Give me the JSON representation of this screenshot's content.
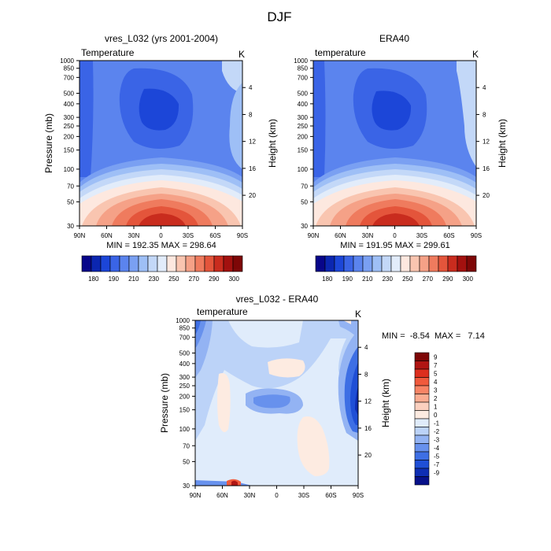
{
  "figure_title": "DJF",
  "chart_data": [
    {
      "type": "contour",
      "id": "model",
      "title": "vres_L032 (yrs 2001-2004)",
      "variable": "Temperature",
      "units": "K",
      "xlabel": "",
      "ylabel": "Pressure (mb)",
      "ylabel_right": "Height (km)",
      "x_ticks": [
        "90N",
        "60N",
        "30N",
        "0",
        "30S",
        "60S",
        "90S"
      ],
      "y_ticks": [
        "30",
        "50",
        "70",
        "100",
        "150",
        "200",
        "250",
        "300",
        "400",
        "500",
        "700",
        "850",
        "1000"
      ],
      "y_ticks_right": [
        "20",
        "16",
        "12",
        "8",
        "4"
      ],
      "ylim_mb": [
        1000,
        30
      ],
      "stats_text": "MIN = 192.35  MAX = 298.64",
      "min": 192.35,
      "max": 298.64,
      "colorbar_labels": [
        "180",
        "190",
        "210",
        "230",
        "250",
        "270",
        "290",
        "300"
      ]
    },
    {
      "type": "contour",
      "id": "obs",
      "title": "ERA40",
      "variable": "temperature",
      "units": "K",
      "xlabel": "",
      "ylabel": "",
      "ylabel_right": "Height (km)",
      "x_ticks": [
        "90N",
        "60N",
        "30N",
        "0",
        "30S",
        "60S",
        "90S"
      ],
      "y_ticks": [
        "30",
        "50",
        "70",
        "100",
        "150",
        "200",
        "250",
        "300",
        "400",
        "500",
        "700",
        "850",
        "1000"
      ],
      "y_ticks_right": [
        "20",
        "16",
        "12",
        "8",
        "4"
      ],
      "ylim_mb": [
        1000,
        30
      ],
      "stats_text": "MIN = 191.95  MAX = 299.61",
      "min": 191.95,
      "max": 299.61,
      "colorbar_labels": [
        "180",
        "190",
        "210",
        "230",
        "250",
        "270",
        "290",
        "300"
      ]
    },
    {
      "type": "contour",
      "id": "diff",
      "title": "vres_L032 - ERA40",
      "variable": "temperature",
      "units": "K",
      "xlabel": "",
      "ylabel": "Pressure (mb)",
      "ylabel_right": "Height (km)",
      "x_ticks": [
        "90N",
        "60N",
        "30N",
        "0",
        "30S",
        "60S",
        "90S"
      ],
      "y_ticks": [
        "30",
        "50",
        "70",
        "100",
        "150",
        "200",
        "250",
        "300",
        "400",
        "500",
        "700",
        "850",
        "1000"
      ],
      "y_ticks_right": [
        "20",
        "16",
        "12",
        "8",
        "4"
      ],
      "ylim_mb": [
        1000,
        30
      ],
      "stats_text": "MIN =  -8.54  MAX =   7.14",
      "min": -8.54,
      "max": 7.14,
      "colorbar_labels": [
        "9",
        "7",
        "5",
        "4",
        "3",
        "2",
        "1",
        "0",
        "-1",
        "-2",
        "-3",
        "-4",
        "-5",
        "-7",
        "-9"
      ]
    }
  ],
  "colors": {
    "temp_scale": [
      "#08068a",
      "#0b26b0",
      "#1c46d8",
      "#3a64e6",
      "#5b84ee",
      "#7aa0f2",
      "#9ebff6",
      "#c3d8f8",
      "#e2ecfa",
      "#fde8df",
      "#f9c5b0",
      "#f5a187",
      "#ef7b5e",
      "#e4553b",
      "#c92c1e",
      "#a3110f",
      "#7e0707"
    ],
    "diff_scale": [
      "#7e0707",
      "#b01513",
      "#dd2f1e",
      "#f05a3c",
      "#f88465",
      "#fbac91",
      "#fbd0bf",
      "#fdebe1",
      "#e0ecfb",
      "#bcd3f8",
      "#93b3f3",
      "#6791ed",
      "#3e6fe4",
      "#1f4fd6",
      "#0e2eb4",
      "#07118a"
    ]
  }
}
